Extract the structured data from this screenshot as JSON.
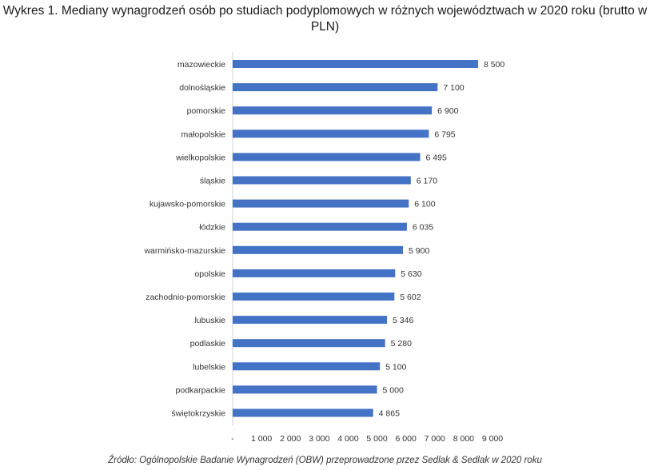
{
  "title": "Wykres 1. Mediany wynagrodzeń osób po studiach podyplomowych w różnych województwach w 2020 roku (brutto w PLN)",
  "source": "Źródło: Ogólnopolskie Badanie Wynagrodzeń (OBW) przeprowadzone przez Sedlak & Sedlak w 2020 roku",
  "chart_data": {
    "type": "bar",
    "orientation": "horizontal",
    "title": "Wykres 1. Mediany wynagrodzeń osób po studiach podyplomowych w różnych województwach w 2020 roku (brutto w PLN)",
    "categories": [
      "mazowieckie",
      "dolnośląskie",
      "pomorskie",
      "małopolskie",
      "wielkopolskie",
      "śląskie",
      "kujawsko-pomorskie",
      "łódzkie",
      "warmińsko-mazurskie",
      "opolskie",
      "zachodnio-pomorskie",
      "lubuskie",
      "podlaskie",
      "lubelskie",
      "podkarpackie",
      "świętokrzyskie"
    ],
    "values": [
      8500,
      7100,
      6900,
      6795,
      6495,
      6170,
      6100,
      6035,
      5900,
      5630,
      5602,
      5346,
      5280,
      5100,
      5000,
      4865
    ],
    "value_labels": [
      "8 500",
      "7 100",
      "6 900",
      "6 795",
      "6 495",
      "6 170",
      "6 100",
      "6 035",
      "5 900",
      "5 630",
      "5 602",
      "5 346",
      "5 280",
      "5 100",
      "5 000",
      "4 865"
    ],
    "xlim": [
      0,
      9000
    ],
    "x_ticks": [
      0,
      1000,
      2000,
      3000,
      4000,
      5000,
      6000,
      7000,
      8000,
      9000
    ],
    "x_tick_labels": [
      "-",
      "1 000",
      "2 000",
      "3 000",
      "4 000",
      "5 000",
      "6 000",
      "7 000",
      "8 000",
      "9 000"
    ],
    "grid": false,
    "legend": "none",
    "bar_color": "#4472C4"
  }
}
